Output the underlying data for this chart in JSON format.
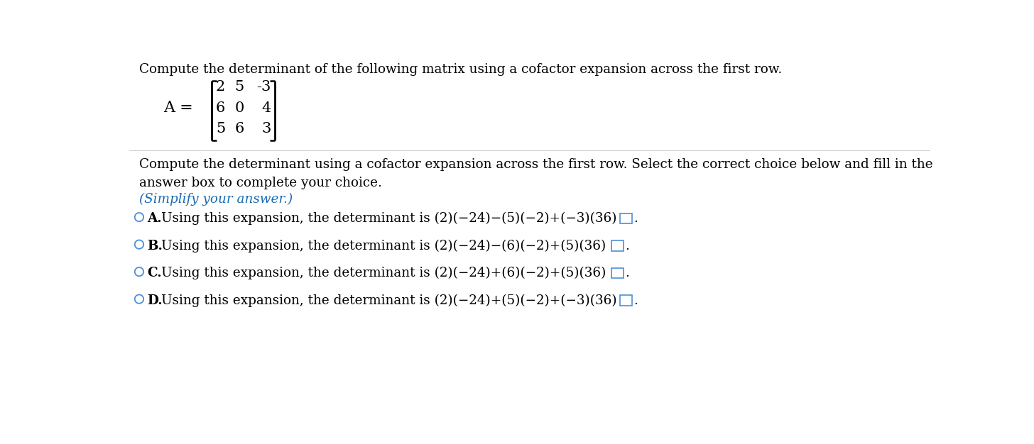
{
  "background_color": "#ffffff",
  "title_text": "Compute the determinant of the following matrix using a cofactor expansion across the first row.",
  "matrix_rows": [
    [
      "2",
      "5",
      "-3"
    ],
    [
      "6",
      "0",
      "4"
    ],
    [
      "5",
      "6",
      "3"
    ]
  ],
  "instruction_text": "Compute the determinant using a cofactor expansion across the first row. Select the correct choice below and fill in the\nanswer box to complete your choice.",
  "simplify_text": "(Simplify your answer.)",
  "simplify_color": "#1a6bb5",
  "choices": [
    {
      "label": "A.",
      "text": "Using this expansion, the determinant is (2)(−24)−(5)(−2)+(−3)(36) ="
    },
    {
      "label": "B.",
      "text": "Using this expansion, the determinant is (2)(−24)−(6)(−2)+(5)(36) ="
    },
    {
      "label": "C.",
      "text": "Using this expansion, the determinant is (2)(−24)+(6)(−2)+(5)(36) ="
    },
    {
      "label": "D.",
      "text": "Using this expansion, the determinant is (2)(−24)+(5)(−2)+(−3)(36) ="
    }
  ],
  "circle_color": "#4a90d9",
  "box_color": "#4a90d9",
  "text_color": "#000000",
  "font_size_title": 13.2,
  "font_size_body": 13.2,
  "font_size_simplify": 13.2,
  "font_size_choice": 13.2,
  "font_size_matrix": 15.0
}
